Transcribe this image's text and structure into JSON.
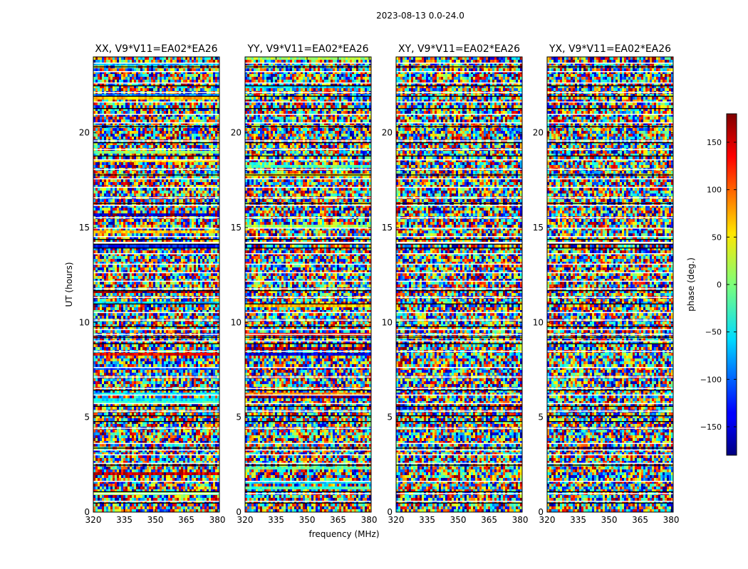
{
  "figure_title": "2023-08-13 0.0-24.0",
  "chart_data": {
    "type": "heatmap",
    "title": "2023-08-13 0.0-24.0",
    "xlabel": "frequency (MHz)",
    "ylabel": "UT (hours)",
    "xlim": [
      320,
      381
    ],
    "ylim": [
      0,
      24
    ],
    "x_ticks": [
      320,
      335,
      350,
      365,
      380
    ],
    "y_ticks": [
      0,
      5,
      10,
      15,
      20
    ],
    "colorbar": {
      "label": "phase (deg.)",
      "range": [
        -180,
        180
      ],
      "ticks": [
        -150,
        -100,
        -50,
        0,
        50,
        100,
        150
      ],
      "colormap": "jet"
    },
    "panels": [
      {
        "title": "XX, V9*V11=EA02*EA26",
        "polarization": "XX"
      },
      {
        "title": "YY, V9*V11=EA02*EA26",
        "polarization": "YY"
      },
      {
        "title": "XY, V9*V11=EA02*EA26",
        "polarization": "XY"
      },
      {
        "title": "YX, V9*V11=EA02*EA26",
        "polarization": "YX"
      }
    ],
    "flagged_white_hours": [
      [
        0.55,
        0.6
      ],
      [
        0.95,
        1.0
      ],
      [
        1.6,
        1.65
      ],
      [
        2.55,
        2.6
      ],
      [
        3.0,
        3.05
      ],
      [
        3.25,
        3.3
      ],
      [
        3.6,
        3.65
      ],
      [
        4.4,
        4.45
      ],
      [
        5.3,
        5.35
      ],
      [
        5.7,
        5.75
      ],
      [
        6.15,
        6.2
      ],
      [
        6.5,
        6.55
      ],
      [
        7.1,
        7.15
      ],
      [
        7.6,
        7.65
      ],
      [
        8.45,
        8.5
      ],
      [
        9.0,
        9.05
      ],
      [
        9.35,
        9.4
      ],
      [
        9.6,
        9.65
      ],
      [
        10.1,
        10.15
      ],
      [
        10.5,
        10.55
      ],
      [
        11.3,
        11.35
      ],
      [
        11.75,
        11.8
      ],
      [
        12.15,
        12.2
      ],
      [
        12.6,
        12.65
      ],
      [
        13.05,
        13.1
      ],
      [
        13.6,
        13.65
      ],
      [
        14.15,
        14.25
      ],
      [
        14.5,
        14.55
      ],
      [
        14.95,
        15.0
      ],
      [
        15.5,
        15.55
      ],
      [
        16.15,
        16.2
      ],
      [
        16.55,
        16.6
      ],
      [
        17.1,
        17.15
      ],
      [
        17.55,
        17.6
      ],
      [
        18.05,
        18.1
      ],
      [
        18.55,
        18.6
      ],
      [
        19.1,
        19.15
      ],
      [
        19.55,
        19.6
      ],
      [
        20.5,
        20.55
      ],
      [
        20.95,
        21.0
      ],
      [
        21.6,
        21.65
      ],
      [
        22.1,
        22.15
      ],
      [
        22.6,
        22.65
      ],
      [
        23.2,
        23.25
      ],
      [
        23.65,
        23.7
      ]
    ],
    "flagged_black_hours": [
      [
        0.45,
        0.5
      ],
      [
        1.05,
        1.1
      ],
      [
        2.45,
        2.5
      ],
      [
        3.35,
        3.4
      ],
      [
        4.75,
        4.8
      ],
      [
        5.05,
        5.1
      ],
      [
        5.55,
        5.6
      ],
      [
        6.4,
        6.45
      ],
      [
        8.85,
        8.9
      ],
      [
        9.2,
        9.25
      ],
      [
        9.75,
        9.8
      ],
      [
        10.95,
        11.0
      ],
      [
        11.65,
        11.7
      ],
      [
        13.9,
        13.95
      ],
      [
        14.1,
        14.15
      ],
      [
        14.35,
        14.4
      ],
      [
        16.25,
        16.3
      ],
      [
        17.75,
        17.8
      ],
      [
        18.75,
        18.8
      ],
      [
        19.45,
        19.5
      ],
      [
        20.3,
        20.35
      ],
      [
        21.25,
        21.3
      ],
      [
        21.9,
        21.95
      ],
      [
        22.45,
        22.5
      ],
      [
        23.45,
        23.5
      ]
    ]
  }
}
